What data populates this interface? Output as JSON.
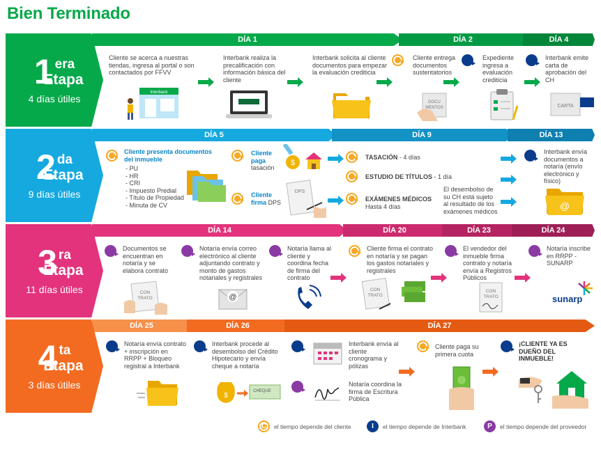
{
  "title": "Bien Terminado",
  "stages": [
    {
      "num": "1",
      "sup": "era",
      "etapa": "Etapa",
      "dias": "4 días útiles",
      "color": "#05a94a",
      "days": [
        {
          "label": "DÍA 1"
        },
        {
          "label": "DÍA 2"
        },
        {
          "label": "DÍA 4"
        }
      ],
      "items": [
        {
          "text": "Cliente se acerca a nuestras tiendas, ingresa al portal o son contactados por FFVV"
        },
        {
          "text": "Interbank realiza la precalificación con información básica del cliente"
        },
        {
          "text": "Interbank solicita al cliente documentos para empezar la evaluación crediticia"
        },
        {
          "text": "Cliente entrega documentos sustentatorios"
        },
        {
          "text": "Expediente ingresa a evaluación crediticia"
        },
        {
          "text": "Interbank emite carta de aprobación del CH"
        }
      ],
      "labels": {
        "store": "Interbank",
        "laptop": "Interbank",
        "docs": "DOCU MENTOS",
        "carta": "CARTA"
      }
    },
    {
      "num": "2",
      "sup": "da",
      "etapa": "Etapa",
      "dias": "9 días útiles",
      "color": "#15a9e0",
      "days": [
        {
          "label": "DÍA 5"
        },
        {
          "label": "DÍA 9"
        },
        {
          "label": "DÍA 13"
        }
      ],
      "items": [
        {
          "title": "Cliente presenta documentos del inmueble",
          "list": [
            "- PU",
            "- HR",
            "- CRI",
            "- Impuesto Predial",
            "- Título de Propiedad",
            "- Minuta de CV"
          ]
        },
        {
          "title": "Cliente paga",
          "text": "tasación"
        },
        {
          "title": "Cliente firma",
          "text": "DPS"
        },
        {
          "title": "TASACIÓN",
          "text": "- 4 días"
        },
        {
          "title": "ESTUDIO DE TÍTULOS",
          "text": "- 1 día"
        },
        {
          "title": "EXÁMENES MÉDICOS",
          "text": "Hasta 4 días"
        },
        {
          "text": "El desembolso de su CH está sujeto al resultado de los exámenes médicos"
        },
        {
          "text": "Interbank envía documentos a notaría (envío electrónico y físico)"
        }
      ],
      "labels": {
        "dps": "DPS"
      }
    },
    {
      "num": "3",
      "sup": "ra",
      "etapa": "Etapa",
      "dias": "11 días útiles",
      "color": "#e2337c",
      "days": [
        {
          "label": "DÍA 14"
        },
        {
          "label": "DÍA 20"
        },
        {
          "label": "DÍA 23"
        },
        {
          "label": "DÍA 24"
        }
      ],
      "items": [
        {
          "text": "Documentos se encuentran en notaría y se elabora contrato"
        },
        {
          "text": "Notaría envía correo electrónico al cliente adjuntando contrato y monto de gastos notariales y registrales"
        },
        {
          "text": "Notaría llama al cliente y coordina fecha de firma del contrato"
        },
        {
          "text": "Cliente firma el contrato en notaría y se pagan los gastos notariales y registrales"
        },
        {
          "text": "El vendedor del inmueble firma contrato y notaría envía a Registros Públicos"
        },
        {
          "text": "Notaría inscribe en RRPP - SUNARP"
        }
      ],
      "labels": {
        "contrato": "CON TRATO",
        "sunarp": "sunarp"
      }
    },
    {
      "num": "4",
      "sup": "ta",
      "etapa": "Etapa",
      "dias": "3 días útiles",
      "color": "#f26b21",
      "days": [
        {
          "label": "DÍA 25"
        },
        {
          "label": "DÍA 26"
        },
        {
          "label": "DÍA 27"
        }
      ],
      "items": [
        {
          "text": "Notaría envía contrato + inscripción en RRPP + Bloqueo registral a Interbank"
        },
        {
          "text": "Interbank procede al desembolso del Crédito Hipotecario y envía cheque a notaría"
        },
        {
          "text": "Interbank envía al cliente cronograma y pólizas"
        },
        {
          "text": "Notaría coordina la firma de Escritura Pública"
        },
        {
          "text": "Cliente paga su primera cuota"
        },
        {
          "text": "¡CLIENTE YA ES DUEÑO DEL INMUEBLE!"
        }
      ],
      "labels": {
        "cheque": "CHEQUE"
      }
    }
  ],
  "legend": [
    {
      "letter": "C",
      "text": "el tiempo depende del cliente",
      "color": "#f7a823"
    },
    {
      "letter": "I",
      "text": "el tiempo depende de Interbank",
      "color": "#0b3c8c"
    },
    {
      "letter": "P",
      "text": "el tiempo depende del proveedor",
      "color": "#8b3aa3"
    }
  ]
}
